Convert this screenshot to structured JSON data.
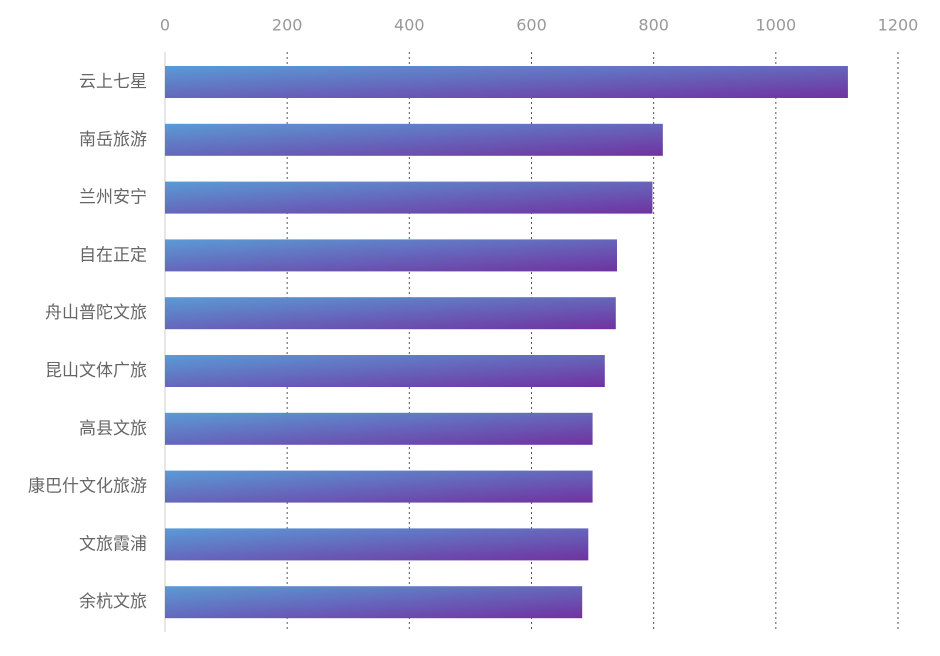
{
  "chart_data": {
    "type": "bar",
    "orientation": "horizontal",
    "title": "",
    "xlabel": "",
    "ylabel": "",
    "xlim": [
      0,
      1200
    ],
    "x_ticks": [
      "0",
      "200",
      "400",
      "600",
      "800",
      "1000",
      "1200"
    ],
    "x_tick_values": [
      0,
      200,
      400,
      600,
      800,
      1000,
      1200
    ],
    "grid": true,
    "x_axis_position": "top",
    "categories": [
      "云上七星",
      "南岳旅游",
      "兰州安宁",
      "自在正定",
      "舟山普陀文旅",
      "昆山文体广旅",
      "高县文旅",
      "康巴什文化旅游",
      "文旅霞浦",
      "余杭文旅"
    ],
    "values": [
      1118,
      815,
      798,
      740,
      738,
      720,
      700,
      700,
      693,
      683
    ],
    "bar_gradient": [
      "#5a9bd6",
      "#7032a0"
    ],
    "grid_color": "#555555",
    "axis_color": "#cccccc"
  }
}
